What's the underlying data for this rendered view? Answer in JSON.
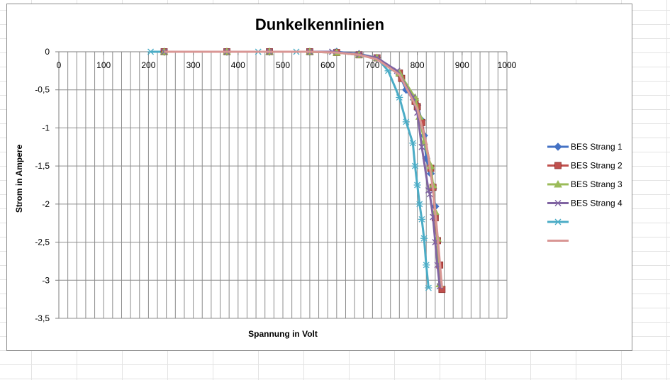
{
  "chart_data": {
    "type": "line",
    "title": "Dunkelkennlinien",
    "xlabel": "Spannung in Volt",
    "ylabel": "Strom in Ampere",
    "xlim": [
      0,
      1000
    ],
    "ylim": [
      -3.5,
      0
    ],
    "xticks": [
      0,
      100,
      200,
      300,
      400,
      500,
      600,
      700,
      800,
      900,
      1000
    ],
    "yticks": [
      0,
      -0.5,
      -1,
      -1.5,
      -2,
      -2.5,
      -3,
      -3.5
    ],
    "x_tick_labels": [
      "0",
      "100",
      "200",
      "300",
      "400",
      "500",
      "600",
      "700",
      "800",
      "900",
      "1000"
    ],
    "y_tick_labels": [
      "0",
      "-0,5",
      "-1",
      "-1,5",
      "-2",
      "-2,5",
      "-3",
      "-3,5"
    ],
    "x_minor_step": 20,
    "y_minor_step": 0.5,
    "grid": true,
    "legend_position": "right",
    "series": [
      {
        "name": "BES Strang 1",
        "color": "#4472C4",
        "marker": "diamond",
        "x": [
          235,
          375,
          470,
          560,
          620,
          670,
          710,
          760,
          775,
          800,
          810,
          815,
          820,
          830,
          835,
          840
        ],
        "y": [
          0,
          0,
          0,
          0,
          0,
          -0.03,
          -0.08,
          -0.3,
          -0.5,
          -0.7,
          -0.9,
          -1.1,
          -1.4,
          -1.6,
          -1.8,
          -2.03
        ]
      },
      {
        "name": "BES Strang 2",
        "color": "#C0504D",
        "marker": "square",
        "x": [
          235,
          375,
          470,
          560,
          620,
          670,
          710,
          760,
          765,
          795,
          800,
          810,
          830,
          835,
          840,
          845,
          850,
          855
        ],
        "y": [
          0,
          0,
          0,
          0,
          -0.01,
          -0.04,
          -0.08,
          -0.28,
          -0.35,
          -0.65,
          -0.72,
          -0.93,
          -1.53,
          -1.78,
          -2.18,
          -2.48,
          -2.8,
          -3.12
        ]
      },
      {
        "name": "BES Strang 3",
        "color": "#9BBB59",
        "marker": "triangle",
        "x": [
          235,
          375,
          470,
          560,
          620,
          670,
          710,
          760,
          795,
          805,
          815,
          830,
          835,
          840,
          845,
          850
        ],
        "y": [
          0,
          0,
          0,
          0,
          -0.01,
          -0.04,
          -0.08,
          -0.28,
          -0.6,
          -0.85,
          -1.18,
          -1.5,
          -1.75,
          -2.1,
          -2.45,
          -3.05
        ]
      },
      {
        "name": "BES Strang 4",
        "color": "#8064A2",
        "marker": "x",
        "x": [
          235,
          375,
          470,
          560,
          610,
          670,
          710,
          755,
          790,
          800,
          810,
          825,
          828,
          835,
          840,
          845,
          850
        ],
        "y": [
          0,
          0,
          0,
          0,
          0,
          -0.04,
          -0.08,
          -0.25,
          -0.6,
          -0.8,
          -1.25,
          -1.82,
          -1.87,
          -2.17,
          -2.5,
          -2.8,
          -3.08
        ]
      },
      {
        "name": "",
        "color": "#4BACC6",
        "marker": "star",
        "x": [
          205,
          235,
          375,
          445,
          470,
          530,
          560,
          610,
          670,
          710,
          735,
          760,
          775,
          790,
          795,
          800,
          805,
          810,
          815,
          820,
          825
        ],
        "y": [
          0,
          0,
          0,
          0,
          0,
          0,
          0,
          0,
          -0.03,
          -0.08,
          -0.25,
          -0.6,
          -0.92,
          -1.2,
          -1.5,
          -1.75,
          -2.0,
          -2.2,
          -2.45,
          -2.8,
          -3.1
        ]
      },
      {
        "name": "",
        "color": "#D99694",
        "marker": "none",
        "x": [
          235,
          375,
          470,
          560,
          620,
          670,
          710,
          760,
          800,
          820,
          835,
          845,
          855
        ],
        "y": [
          0,
          0,
          0,
          0,
          -0.01,
          -0.04,
          -0.1,
          -0.3,
          -0.75,
          -1.2,
          -1.8,
          -2.4,
          -3.1
        ]
      }
    ]
  }
}
